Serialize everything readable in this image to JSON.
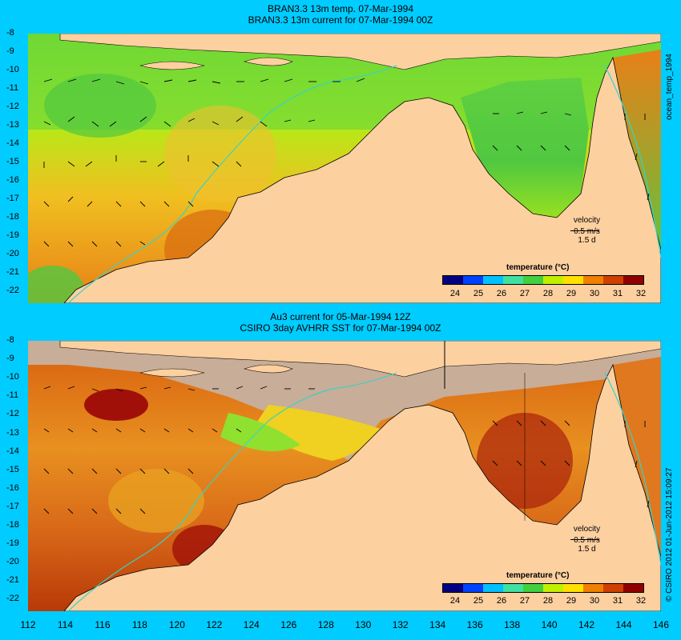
{
  "panels": [
    {
      "title_line1": "BRAN3.3 13m temp. 07-Mar-1994",
      "title_line2": "BRAN3.3 13m current for 07-Mar-1994 00Z",
      "side_label": "ocean_temp_1994",
      "velocity_label": "velocity",
      "velocity_scale": "0.5 m/s",
      "velocity_time": "1.5 d",
      "colorbar_title": "temperature (°C)"
    },
    {
      "title_line1": "Au3 current for 05-Mar-1994 12Z",
      "title_line2": "CSIRO 3day AVHRR SST for 07-Mar-1994 00Z",
      "side_label": "© CSIRO 2012   01-Jun-2012 15:09:27",
      "velocity_label": "velocity",
      "velocity_scale": "0.5 m/s",
      "velocity_time": "1.5 d",
      "colorbar_title": "temperature (°C)"
    }
  ],
  "y_ticks": [
    "-8",
    "-9",
    "-10",
    "-11",
    "-12",
    "-13",
    "-14",
    "-15",
    "-16",
    "-17",
    "-18",
    "-19",
    "-20",
    "-21",
    "-22"
  ],
  "x_ticks": [
    "112",
    "114",
    "116",
    "118",
    "120",
    "122",
    "124",
    "126",
    "128",
    "130",
    "132",
    "134",
    "136",
    "138",
    "140",
    "142",
    "144",
    "146"
  ],
  "colorbar_ticks": [
    "24",
    "25",
    "26",
    "27",
    "28",
    "29",
    "30",
    "31",
    "32"
  ],
  "colors": {
    "background": "#00ccff",
    "land": "#fdd0a0",
    "no_data": "#c8ad98",
    "coastline": "#000000",
    "shelf_contour": "#35d3c8"
  },
  "colorbar_colors": [
    "#000080",
    "#0040ff",
    "#00c0ff",
    "#40e0a0",
    "#40d040",
    "#c0f000",
    "#ffe000",
    "#f08000",
    "#d04000",
    "#900000"
  ]
}
